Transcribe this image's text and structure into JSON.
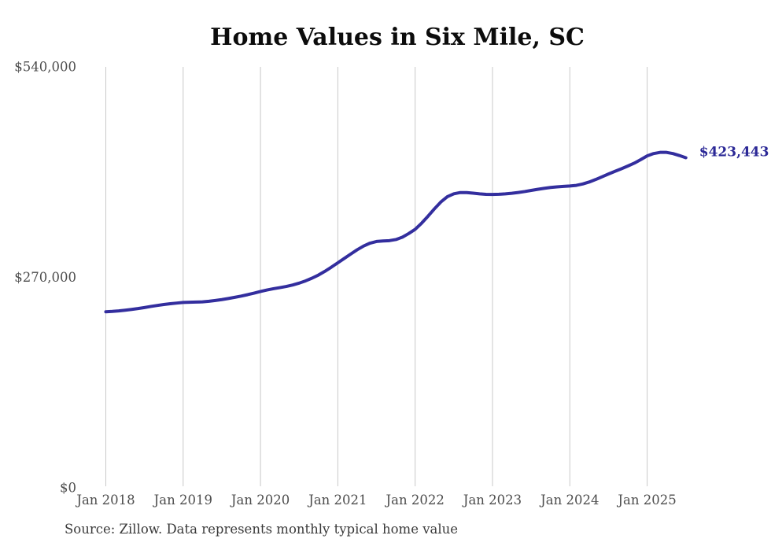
{
  "chart_data": {
    "type": "line",
    "title": "Home Values in Six Mile, SC",
    "xlabel": "",
    "ylabel": "",
    "ylim": [
      0,
      540000
    ],
    "grid": "vertical-only",
    "legend": "none",
    "x_tick_labels": [
      "Jan 2018",
      "Jan 2019",
      "Jan 2020",
      "Jan 2021",
      "Jan 2022",
      "Jan 2023",
      "Jan 2024",
      "Jan 2025"
    ],
    "y_ticks": [
      {
        "label": "$540,000",
        "value": 540000
      },
      {
        "label": "$270,000",
        "value": 270000
      },
      {
        "label": "$0",
        "value": 0
      }
    ],
    "series": [
      {
        "name": "Monthly typical home value",
        "start": "Jan 2018",
        "end": "Jul 2025",
        "frequency": "monthly",
        "values": [
          225800,
          226300,
          227000,
          227900,
          228900,
          230000,
          231300,
          232700,
          234000,
          235200,
          236200,
          237000,
          237800,
          238100,
          238300,
          238600,
          239300,
          240300,
          241500,
          242900,
          244400,
          246000,
          247800,
          249800,
          251900,
          253800,
          255400,
          256800,
          258300,
          260200,
          262600,
          265500,
          269000,
          273000,
          277800,
          283100,
          288700,
          294300,
          299900,
          305400,
          310200,
          313900,
          316000,
          316700,
          317100,
          318500,
          321500,
          326200,
          331600,
          339500,
          348500,
          358000,
          366800,
          373500,
          377200,
          378800,
          378800,
          378000,
          377100,
          376500,
          376400,
          376600,
          377100,
          377900,
          378900,
          380100,
          381500,
          382900,
          384200,
          385300,
          386100,
          386700,
          387200,
          388000,
          389800,
          392300,
          395500,
          399000,
          402600,
          406000,
          409300,
          412800,
          416500,
          421000,
          425800,
          428800,
          430300,
          430300,
          428800,
          426300,
          423443
        ]
      }
    ],
    "latest_value": 423443,
    "latest_value_label": "$423,443",
    "source_note": "Source: Zillow. Data represents monthly typical home value",
    "colors": {
      "line": "#332e9e",
      "annotation": "#2b2896",
      "grid": "#c9c9c9",
      "tick_label": "#4d4d4d",
      "title": "#0c0c0c",
      "source": "#3a3a3a",
      "background": "#ffffff"
    }
  }
}
